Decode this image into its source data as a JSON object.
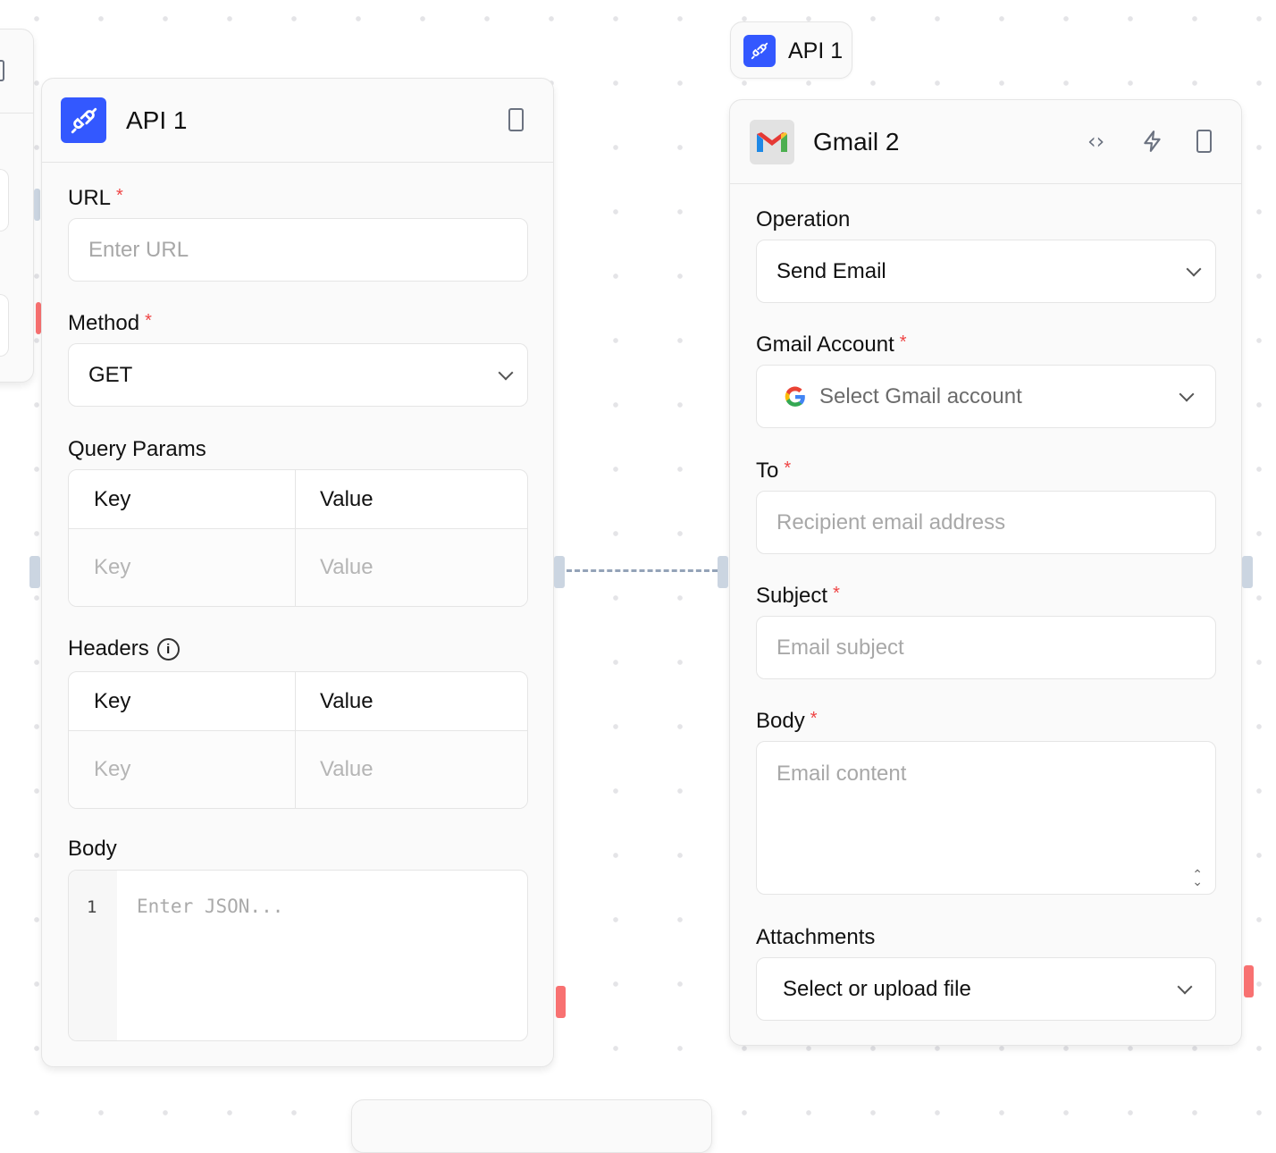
{
  "colors": {
    "accent": "#3358ff",
    "required": "#ef4444",
    "handle": "#cbd5e1",
    "handle_error": "#f87171"
  },
  "api_node": {
    "title": "API 1",
    "icon": "plug-icon",
    "url": {
      "label": "URL",
      "required": "*",
      "placeholder": "Enter URL"
    },
    "method": {
      "label": "Method",
      "required": "*",
      "value": "GET"
    },
    "query_params": {
      "label": "Query Params",
      "key_header": "Key",
      "value_header": "Value",
      "key_placeholder": "Key",
      "value_placeholder": "Value"
    },
    "headers": {
      "label": "Headers",
      "key_header": "Key",
      "value_header": "Value",
      "key_placeholder": "Key",
      "value_placeholder": "Value"
    },
    "body": {
      "label": "Body",
      "line_number": "1",
      "placeholder": "Enter JSON..."
    }
  },
  "api_chip": {
    "title": "API 1",
    "icon": "plug-icon"
  },
  "gmail_node": {
    "title": "Gmail 2",
    "icon": "gmail-icon",
    "operation": {
      "label": "Operation",
      "value": "Send Email"
    },
    "account": {
      "label": "Gmail Account",
      "required": "*",
      "placeholder": "Select Gmail account"
    },
    "to": {
      "label": "To",
      "required": "*",
      "placeholder": "Recipient email address"
    },
    "subject": {
      "label": "Subject",
      "required": "*",
      "placeholder": "Email subject"
    },
    "body": {
      "label": "Body",
      "required": "*",
      "placeholder": "Email content"
    },
    "attachments": {
      "label": "Attachments",
      "value": "Select or upload file"
    }
  }
}
